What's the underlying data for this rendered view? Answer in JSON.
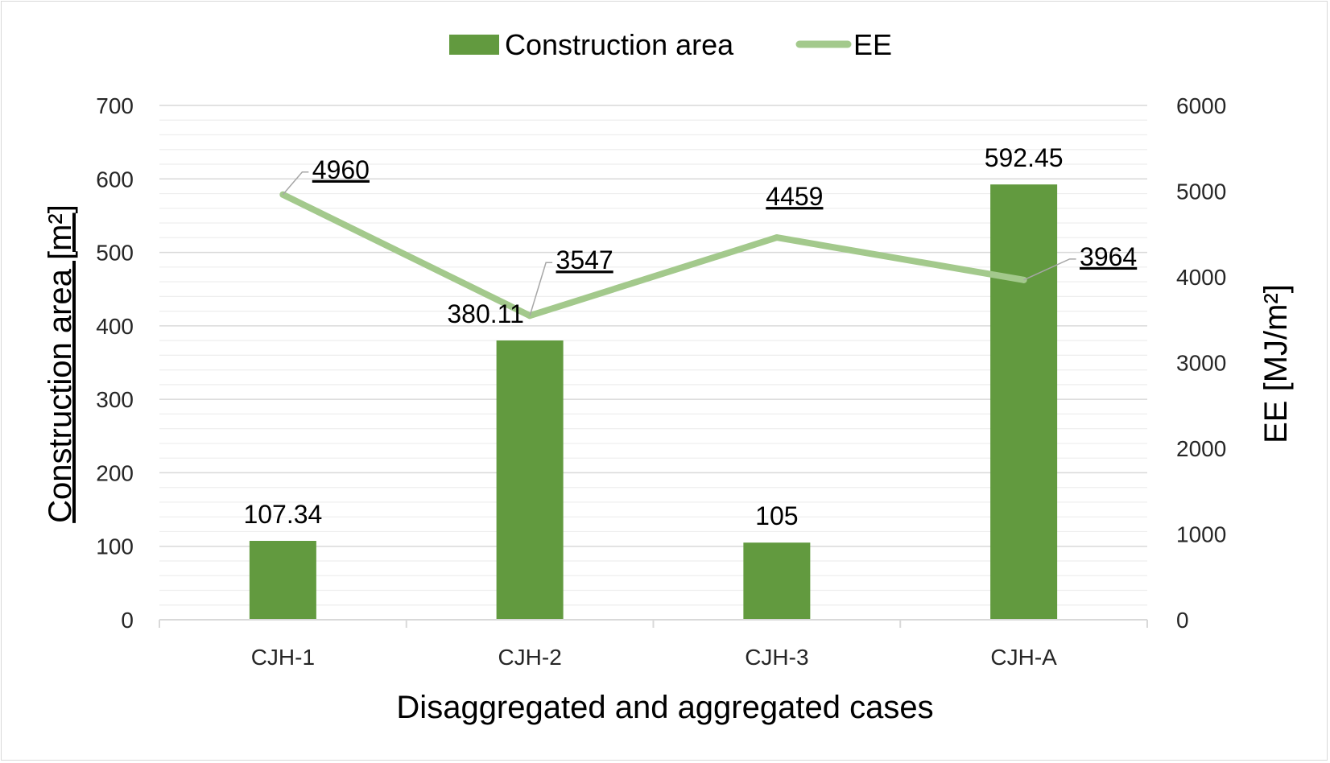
{
  "chart_data": {
    "type": "bar",
    "categories": [
      "CJH-1",
      "CJH-2",
      "CJH-3",
      "CJH-A"
    ],
    "series": [
      {
        "name": "Construction area",
        "type": "bar",
        "axis": "left",
        "color": "#629a3f",
        "values": [
          107.34,
          380.11,
          105,
          592.45
        ],
        "labels": [
          "107.34",
          "380.11",
          "105",
          "592.45"
        ]
      },
      {
        "name": "EE",
        "type": "line",
        "axis": "right",
        "color": "#a3c98c",
        "values": [
          4960,
          3547,
          4459,
          3964
        ],
        "labels": [
          "4960",
          "3547",
          "4459",
          "3964"
        ]
      }
    ],
    "xlabel": "Disaggregated and aggregated cases",
    "ylabel": "Construction area [m²]",
    "ylabel_right": "EE [MJ/m²]",
    "ylim": [
      0,
      700
    ],
    "ylim_right": [
      0,
      6000
    ],
    "yticks": [
      "0",
      "100",
      "200",
      "300",
      "400",
      "500",
      "600",
      "700"
    ],
    "yticks_right": [
      "0",
      "1000",
      "2000",
      "3000",
      "4000",
      "5000",
      "6000"
    ],
    "grid": true,
    "legend_position": "top-center",
    "gridline_color": "#d9d9d9"
  }
}
